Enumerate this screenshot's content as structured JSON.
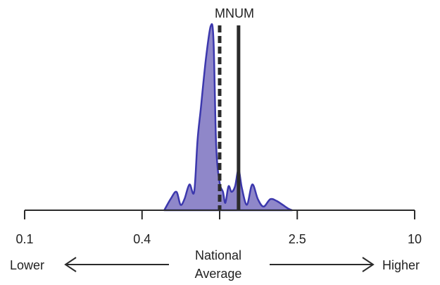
{
  "chart_data": {
    "type": "area",
    "title": "MNUM",
    "scale": "log",
    "xlim": [
      0.1,
      10
    ],
    "tick_values": [
      0.1,
      0.4,
      1,
      2.5,
      10
    ],
    "tick_labels": [
      "0.1",
      "0.4",
      "",
      "2.5",
      "10"
    ],
    "reference_lines": [
      {
        "label": "National Average",
        "x": 1.0,
        "style": "dashed"
      },
      {
        "label": "",
        "x": 1.25,
        "style": "solid"
      }
    ],
    "direction_labels": {
      "left": "Lower",
      "center_line1": "National",
      "center_line2": "Average",
      "right": "Higher"
    },
    "fill_color": "#8f87c9",
    "line_color": "#3c38ad",
    "density": {
      "x": [
        0.52,
        0.56,
        0.6,
        0.63,
        0.66,
        0.7,
        0.74,
        0.77,
        0.8,
        0.85,
        0.9,
        0.93,
        0.96,
        1.0,
        1.04,
        1.07,
        1.11,
        1.15,
        1.2,
        1.25,
        1.3,
        1.38,
        1.47,
        1.57,
        1.68,
        1.82,
        1.96,
        2.1,
        2.24,
        2.35
      ],
      "y": [
        0.0,
        0.06,
        0.1,
        0.03,
        0.06,
        0.14,
        0.1,
        0.38,
        0.55,
        0.82,
        1.0,
        0.92,
        0.35,
        0.15,
        0.1,
        0.04,
        0.13,
        0.1,
        0.13,
        0.22,
        0.12,
        0.03,
        0.14,
        0.06,
        0.02,
        0.06,
        0.05,
        0.03,
        0.01,
        0.0
      ]
    }
  }
}
